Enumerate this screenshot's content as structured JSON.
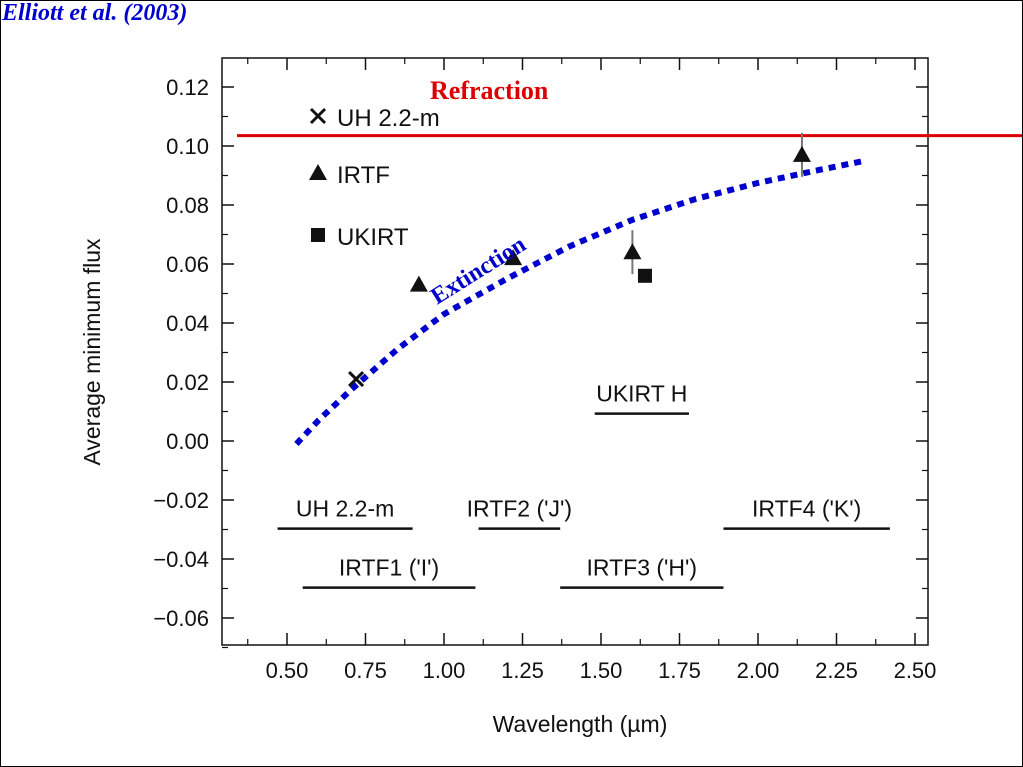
{
  "citation": "Elliott et al. (2003)",
  "colors": {
    "refraction": "#dd0000",
    "extinction": "#0000cc",
    "citation": "#0000cc",
    "ink": "#111111"
  },
  "chart_data": {
    "type": "scatter",
    "xlabel": "Wavelength (µm)",
    "ylabel": "Average minimum flux",
    "xlim": [
      0.3,
      2.5
    ],
    "ylim": [
      -0.07,
      0.13
    ],
    "xticks": [
      {
        "value": 0.5,
        "label": "0.50"
      },
      {
        "value": 0.75,
        "label": "0.75"
      },
      {
        "value": 1.0,
        "label": "1.00"
      },
      {
        "value": 1.25,
        "label": "1.25"
      },
      {
        "value": 1.5,
        "label": "1.50"
      },
      {
        "value": 1.75,
        "label": "1.75"
      },
      {
        "value": 2.0,
        "label": "2.00"
      },
      {
        "value": 2.25,
        "label": "2.25"
      },
      {
        "value": 2.5,
        "label": "2.50"
      }
    ],
    "yticks": [
      {
        "value": 0.12,
        "label": "0.12"
      },
      {
        "value": 0.1,
        "label": "0.10"
      },
      {
        "value": 0.08,
        "label": "0.08"
      },
      {
        "value": 0.06,
        "label": "0.06"
      },
      {
        "value": 0.04,
        "label": "0.04"
      },
      {
        "value": 0.02,
        "label": "0.02"
      },
      {
        "value": 0.0,
        "label": "0.00"
      },
      {
        "value": -0.02,
        "label": "−0.02"
      },
      {
        "value": -0.04,
        "label": "−0.04"
      },
      {
        "value": -0.06,
        "label": "−0.06"
      }
    ],
    "grid": false,
    "legend_position": "top-left",
    "series": [
      {
        "name": "UH 2.2-m",
        "marker": "x",
        "points": [
          {
            "x": 0.72,
            "y": 0.021
          }
        ]
      },
      {
        "name": "IRTF",
        "marker": "triangle",
        "points": [
          {
            "x": 0.92,
            "y": 0.053
          },
          {
            "x": 1.22,
            "y": 0.062
          },
          {
            "x": 1.6,
            "y": 0.064
          },
          {
            "x": 2.14,
            "y": 0.097
          }
        ]
      },
      {
        "name": "UKIRT",
        "marker": "square",
        "points": [
          {
            "x": 1.64,
            "y": 0.056
          }
        ]
      }
    ],
    "curves": [
      {
        "label": "Refraction",
        "style": "solid",
        "color": "#dd0000",
        "points": [
          {
            "x": 0.3,
            "y": 0.1035
          },
          {
            "x": 2.6,
            "y": 0.1035
          }
        ]
      },
      {
        "label": "Extinction",
        "style": "dotted",
        "color": "#0000cc",
        "points": [
          {
            "x": 0.53,
            "y": -0.001
          },
          {
            "x": 0.6,
            "y": 0.007
          },
          {
            "x": 0.7,
            "y": 0.017
          },
          {
            "x": 0.85,
            "y": 0.031
          },
          {
            "x": 1.0,
            "y": 0.043
          },
          {
            "x": 1.2,
            "y": 0.055
          },
          {
            "x": 1.4,
            "y": 0.066
          },
          {
            "x": 1.6,
            "y": 0.075
          },
          {
            "x": 1.8,
            "y": 0.082
          },
          {
            "x": 2.0,
            "y": 0.0875
          },
          {
            "x": 2.2,
            "y": 0.092
          },
          {
            "x": 2.34,
            "y": 0.095
          }
        ]
      }
    ],
    "bands": [
      {
        "label": "UH 2.2-m",
        "x0": 0.47,
        "x1": 0.9,
        "y": -0.0297
      },
      {
        "label": "IRTF1 ('I')",
        "x0": 0.55,
        "x1": 1.1,
        "y": -0.0497
      },
      {
        "label": "IRTF2 ('J')",
        "x0": 1.11,
        "x1": 1.37,
        "y": -0.0297
      },
      {
        "label": "IRTF3 ('H')",
        "x0": 1.37,
        "x1": 1.89,
        "y": -0.0497
      },
      {
        "label": "UKIRT H",
        "x0": 1.48,
        "x1": 1.78,
        "y": 0.0093
      },
      {
        "label": "IRTF4 ('K')",
        "x0": 1.89,
        "x1": 2.42,
        "y": -0.0297
      }
    ]
  }
}
